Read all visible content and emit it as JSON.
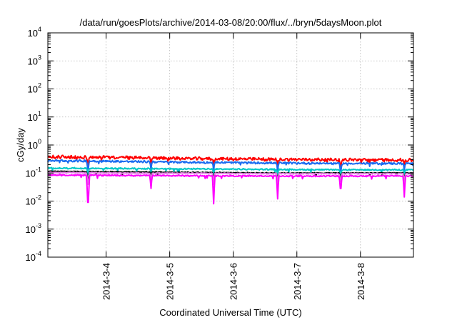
{
  "chart_data": {
    "type": "line",
    "title": "/data/run/goesPlots/archive/2014-03-08/20:00/flux/../bryn/5daysMoon.plot",
    "xlabel": "Coordinated Universal Time (UTC)",
    "ylabel": "cGy/day",
    "y_scale": "log",
    "ylim": [
      0.0001,
      10000
    ],
    "y_ticks": [
      {
        "base": "10",
        "exp": "-4",
        "value": 0.0001
      },
      {
        "base": "10",
        "exp": "-3",
        "value": 0.001
      },
      {
        "base": "10",
        "exp": "-2",
        "value": 0.01
      },
      {
        "base": "10",
        "exp": "-1",
        "value": 0.1
      },
      {
        "base": "10",
        "exp": "0",
        "value": 1
      },
      {
        "base": "10",
        "exp": "1",
        "value": 10
      },
      {
        "base": "10",
        "exp": "2",
        "value": 100
      },
      {
        "base": "10",
        "exp": "3",
        "value": 1000
      },
      {
        "base": "10",
        "exp": "4",
        "value": 10000
      }
    ],
    "xlim": [
      "2014-03-03 02:00",
      "2014-03-08 20:00"
    ],
    "x_ticks": [
      "2014-3-4",
      "2014-3-5",
      "2014-3-6",
      "2014-3-7",
      "2014-3-8"
    ],
    "grid": true,
    "series": [
      {
        "color": "#ff0000",
        "values": [
          0.38,
          0.36,
          0.33,
          0.31,
          0.3,
          0.29
        ]
      },
      {
        "color": "#1a6cf0",
        "values": [
          0.28,
          0.26,
          0.24,
          0.23,
          0.22,
          0.22
        ]
      },
      {
        "color": "#00c8c8",
        "values": [
          0.15,
          0.145,
          0.14,
          0.135,
          0.13,
          0.13
        ]
      },
      {
        "color": "#000000",
        "values": [
          0.115,
          0.11,
          0.105,
          0.1,
          0.1,
          0.1
        ]
      },
      {
        "color": "#e080e0",
        "values": [
          0.105,
          0.1,
          0.098,
          0.095,
          0.095,
          0.095
        ]
      },
      {
        "color": "#ff00ff",
        "values": [
          0.085,
          0.082,
          0.08,
          0.078,
          0.078,
          0.078
        ]
      }
    ],
    "dips": [
      {
        "time": "2014-03-03 17:10",
        "values": [
          0.2,
          0.14,
          0.09,
          0.05,
          0.04,
          0.009
        ]
      },
      {
        "time": "2014-03-04 17:00",
        "values": [
          0.2,
          0.13,
          0.09,
          0.06,
          0.05,
          0.028
        ]
      },
      {
        "time": "2014-03-05 16:40",
        "values": [
          0.18,
          0.12,
          0.08,
          0.05,
          0.04,
          0.008
        ]
      },
      {
        "time": "2014-03-06 16:40",
        "values": [
          0.17,
          0.11,
          0.08,
          0.05,
          0.04,
          0.012
        ]
      },
      {
        "time": "2014-03-07 16:30",
        "values": [
          0.17,
          0.12,
          0.08,
          0.06,
          0.05,
          0.028
        ]
      },
      {
        "time": "2014-03-08 16:30",
        "values": [
          0.17,
          0.12,
          0.08,
          0.05,
          0.04,
          0.014
        ]
      }
    ]
  }
}
